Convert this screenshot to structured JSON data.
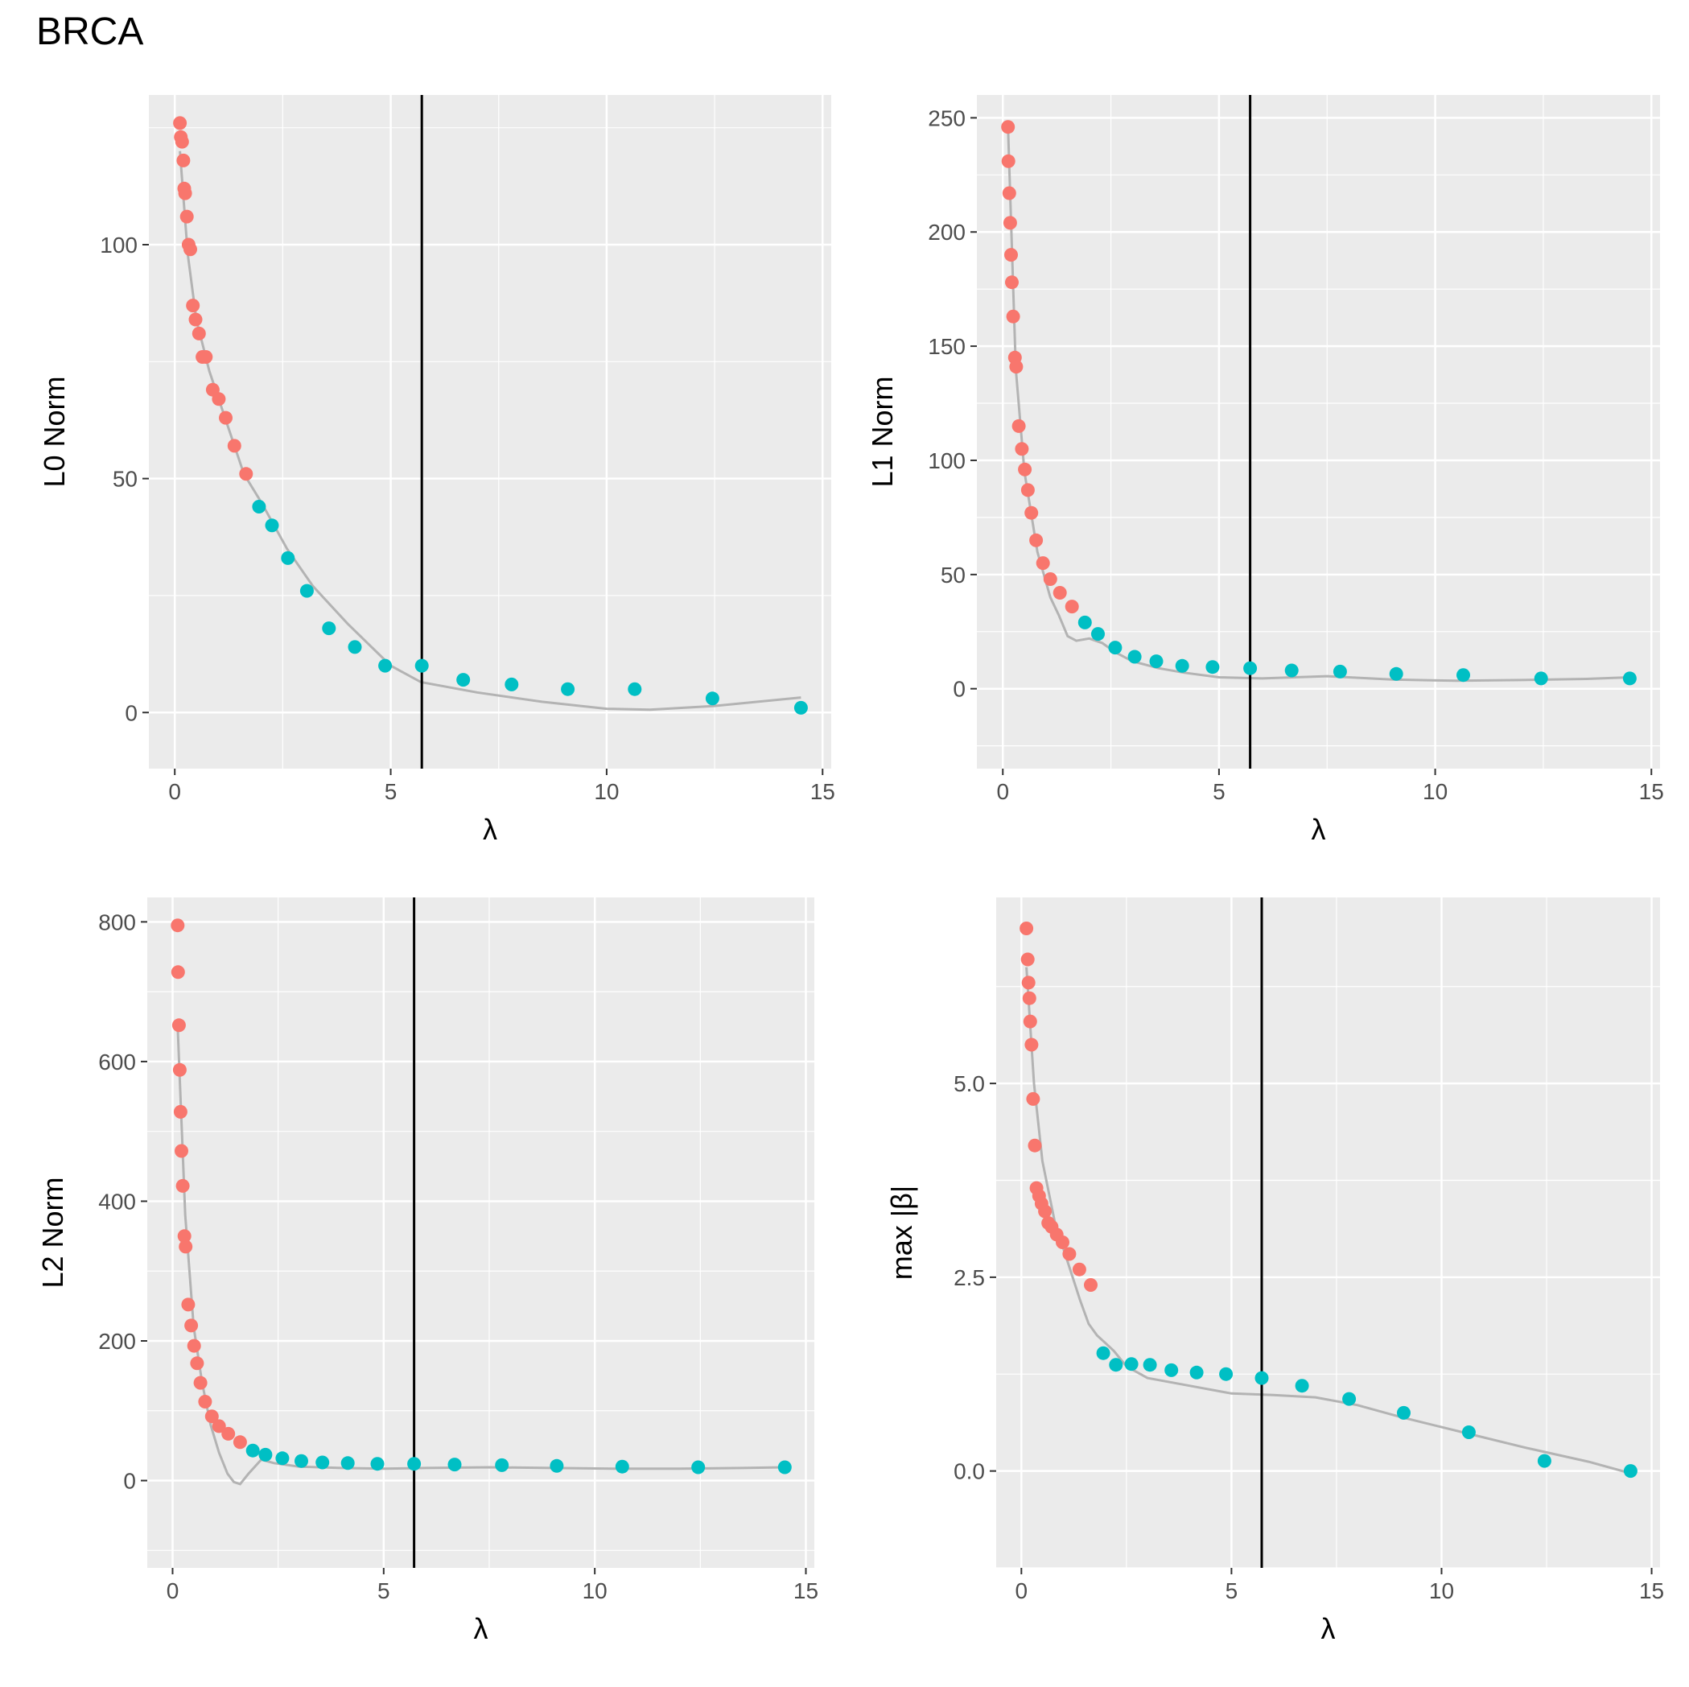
{
  "figure_title": "BRCA",
  "colors": {
    "panel_bg": "#EBEBEB",
    "grid": "#FFFFFF",
    "red": "#F8766D",
    "teal": "#00BFC4",
    "curve": "#B3B3B3",
    "vline": "#000000"
  },
  "chart_data": [
    {
      "type": "scatter",
      "xlabel": "λ",
      "ylabel": "L0 Norm",
      "xlim": [
        -0.6,
        15.2
      ],
      "ylim": [
        -12,
        132
      ],
      "xticks": [
        0,
        5,
        10,
        15
      ],
      "xtick_labels": [
        "0",
        "5",
        "10",
        "15"
      ],
      "yticks": [
        0,
        50,
        100
      ],
      "ytick_labels": [
        "0",
        "50",
        "100"
      ],
      "vline": 5.72,
      "series": [
        {
          "color": "red",
          "x": [
            0.12,
            0.14,
            0.17,
            0.2,
            0.22,
            0.24,
            0.28,
            0.32,
            0.36,
            0.42,
            0.48,
            0.56,
            0.64,
            0.72,
            0.88,
            1.02,
            1.18,
            1.38,
            1.65
          ],
          "y": [
            126,
            123,
            122,
            118,
            112,
            111,
            106,
            100,
            99,
            87,
            84,
            81,
            76,
            76,
            69,
            67,
            63,
            57,
            51
          ]
        },
        {
          "color": "teal",
          "x": [
            1.95,
            2.25,
            2.62,
            3.06,
            3.57,
            4.17,
            4.87,
            5.72,
            6.68,
            7.8,
            9.1,
            10.65,
            12.45,
            14.5
          ],
          "y": [
            44,
            40,
            33,
            26,
            18,
            14,
            10,
            10,
            7,
            6,
            5,
            5,
            3,
            1
          ]
        }
      ],
      "curve": {
        "x": [
          0.12,
          0.3,
          0.5,
          0.8,
          1.2,
          1.6,
          2.0,
          2.6,
          3.2,
          4.0,
          5.0,
          5.7,
          7.0,
          8.5,
          10.0,
          11.0,
          12.5,
          14.5
        ],
        "y": [
          120,
          98,
          84,
          73,
          62,
          51,
          45,
          35,
          27,
          19,
          10,
          6.5,
          4.3,
          2.3,
          0.8,
          0.6,
          1.4,
          3.2
        ]
      }
    },
    {
      "type": "scatter",
      "xlabel": "λ",
      "ylabel": "L1 Norm",
      "xlim": [
        -0.6,
        15.2
      ],
      "ylim": [
        -35,
        260
      ],
      "xticks": [
        0,
        5,
        10,
        15
      ],
      "xtick_labels": [
        "0",
        "5",
        "10",
        "15"
      ],
      "yticks": [
        0,
        50,
        100,
        150,
        200,
        250
      ],
      "ytick_labels": [
        "0",
        "50",
        "100",
        "150",
        "200",
        "250"
      ],
      "vline": 5.72,
      "series": [
        {
          "color": "red",
          "x": [
            0.12,
            0.13,
            0.15,
            0.17,
            0.19,
            0.21,
            0.24,
            0.28,
            0.31,
            0.37,
            0.44,
            0.51,
            0.58,
            0.66,
            0.77,
            0.93,
            1.1,
            1.32,
            1.6
          ],
          "y": [
            246,
            231,
            217,
            204,
            190,
            178,
            163,
            145,
            141,
            115,
            105,
            96,
            87,
            77,
            65,
            55,
            48,
            42,
            36
          ]
        },
        {
          "color": "teal",
          "x": [
            1.9,
            2.2,
            2.6,
            3.05,
            3.55,
            4.15,
            4.85,
            5.72,
            6.68,
            7.8,
            9.1,
            10.65,
            12.45,
            14.5
          ],
          "y": [
            29,
            24,
            18,
            14,
            12,
            10,
            9.5,
            9,
            8,
            7.5,
            6.5,
            6,
            4.5,
            4.5
          ]
        }
      ],
      "curve": {
        "x": [
          0.12,
          0.3,
          0.5,
          0.8,
          1.1,
          1.3,
          1.5,
          1.7,
          2.0,
          2.3,
          2.6,
          3.0,
          3.6,
          4.2,
          5.0,
          6.0,
          7.5,
          9.0,
          10.5,
          12.0,
          13.5,
          14.5
        ],
        "y": [
          246,
          140,
          95,
          60,
          40,
          32,
          23,
          21,
          22,
          20,
          16,
          12,
          9,
          7,
          5,
          4.5,
          5.5,
          4,
          3.5,
          3.8,
          4.3,
          5
        ]
      }
    },
    {
      "type": "scatter",
      "xlabel": "λ",
      "ylabel": "L2 Norm",
      "xlim": [
        -0.6,
        15.2
      ],
      "ylim": [
        -125,
        835
      ],
      "xticks": [
        0,
        5,
        10,
        15
      ],
      "xtick_labels": [
        "0",
        "5",
        "10",
        "15"
      ],
      "yticks": [
        0,
        200,
        400,
        600,
        800
      ],
      "ytick_labels": [
        "0",
        "200",
        "400",
        "600",
        "800"
      ],
      "vline": 5.72,
      "series": [
        {
          "color": "red",
          "x": [
            0.12,
            0.13,
            0.15,
            0.17,
            0.19,
            0.21,
            0.24,
            0.28,
            0.31,
            0.37,
            0.44,
            0.51,
            0.58,
            0.66,
            0.77,
            0.93,
            1.1,
            1.32,
            1.6
          ],
          "y": [
            795,
            728,
            652,
            588,
            528,
            472,
            422,
            350,
            335,
            252,
            222,
            193,
            168,
            140,
            113,
            92,
            78,
            67,
            55
          ]
        },
        {
          "color": "teal",
          "x": [
            1.9,
            2.2,
            2.6,
            3.05,
            3.55,
            4.15,
            4.85,
            5.72,
            6.68,
            7.8,
            9.1,
            10.65,
            12.45,
            14.5
          ],
          "y": [
            43,
            37,
            32,
            28,
            26,
            25,
            24,
            24,
            23,
            22,
            21,
            20,
            19,
            19
          ]
        }
      ],
      "curve": {
        "x": [
          0.12,
          0.3,
          0.5,
          0.7,
          0.9,
          1.1,
          1.3,
          1.45,
          1.6,
          1.8,
          2.1,
          2.4,
          3.0,
          4.0,
          5.0,
          6.0,
          7.5,
          9.0,
          10.5,
          12.0,
          13.5,
          14.5
        ],
        "y": [
          650,
          380,
          220,
          140,
          80,
          40,
          10,
          -2,
          -5,
          10,
          30,
          25,
          20,
          18,
          17,
          18,
          19,
          18,
          17,
          17,
          18,
          19
        ]
      }
    },
    {
      "type": "scatter",
      "xlabel": "λ",
      "ylabel": "max |β|",
      "xlim": [
        -0.6,
        15.2
      ],
      "ylim": [
        -1.25,
        7.4
      ],
      "xticks": [
        0,
        5,
        10,
        15
      ],
      "xtick_labels": [
        "0",
        "5",
        "10",
        "15"
      ],
      "yticks": [
        0,
        2.5,
        5
      ],
      "ytick_labels": [
        "0.0",
        "2.5",
        "5.0"
      ],
      "vline": 5.72,
      "series": [
        {
          "color": "red",
          "x": [
            0.12,
            0.15,
            0.17,
            0.19,
            0.21,
            0.24,
            0.28,
            0.32,
            0.36,
            0.42,
            0.48,
            0.56,
            0.64,
            0.72,
            0.84,
            0.98,
            1.14,
            1.38,
            1.65
          ],
          "y": [
            7.0,
            6.6,
            6.3,
            6.1,
            5.8,
            5.5,
            4.8,
            4.2,
            3.65,
            3.55,
            3.45,
            3.35,
            3.2,
            3.15,
            3.05,
            2.95,
            2.8,
            2.6,
            2.4
          ]
        },
        {
          "color": "teal",
          "x": [
            1.95,
            2.25,
            2.62,
            3.06,
            3.57,
            4.17,
            4.87,
            5.72,
            6.68,
            7.8,
            9.1,
            10.65,
            12.45,
            14.5
          ],
          "y": [
            1.52,
            1.37,
            1.38,
            1.37,
            1.3,
            1.27,
            1.25,
            1.2,
            1.1,
            0.93,
            0.75,
            0.5,
            0.13,
            0.0
          ]
        }
      ],
      "curve": {
        "x": [
          0.12,
          0.3,
          0.5,
          0.8,
          1.1,
          1.4,
          1.6,
          1.8,
          2.0,
          2.2,
          2.5,
          3.0,
          4.0,
          5.0,
          6.0,
          7.0,
          8.0,
          9.0,
          10.5,
          12.0,
          13.5,
          14.5
        ],
        "y": [
          6.5,
          5.0,
          4.0,
          3.2,
          2.7,
          2.2,
          1.9,
          1.75,
          1.65,
          1.55,
          1.35,
          1.2,
          1.1,
          1.0,
          0.98,
          0.95,
          0.85,
          0.7,
          0.5,
          0.3,
          0.12,
          -0.03
        ]
      }
    }
  ]
}
